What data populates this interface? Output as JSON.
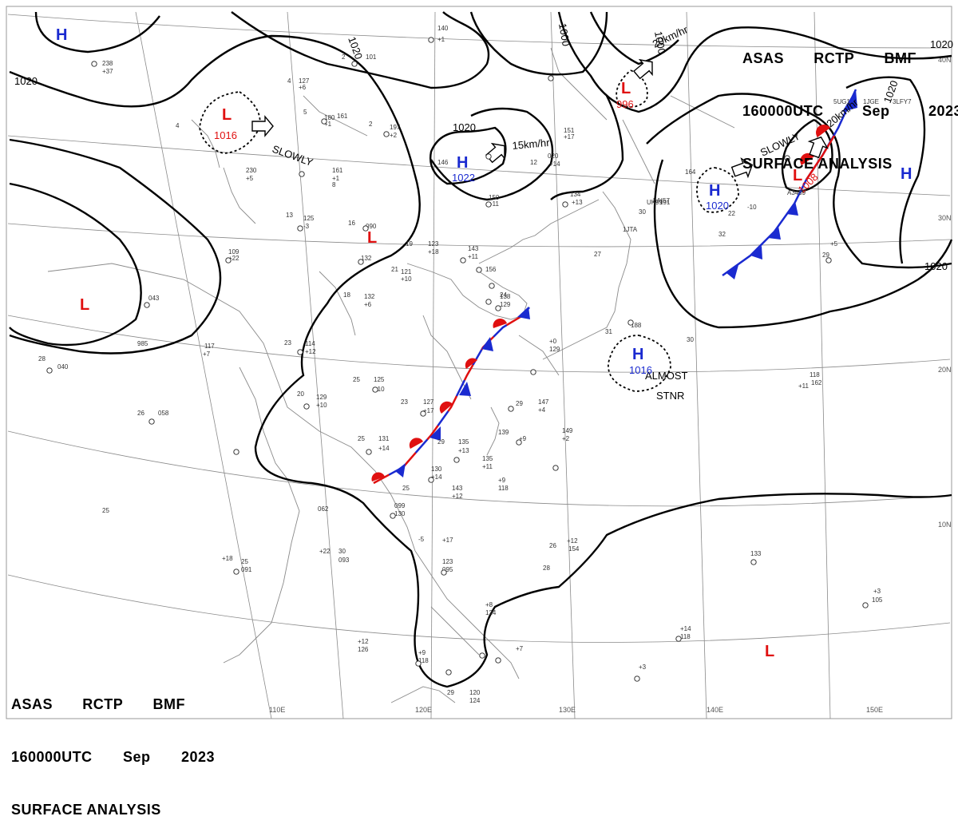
{
  "header": {
    "line1": [
      "ASAS",
      "RCTP",
      "BMF"
    ],
    "line2": [
      "160000UTC",
      "Sep",
      "2023"
    ],
    "line3": "SURFACE ANALYSIS"
  },
  "colors": {
    "high": "#1a2ad0",
    "low": "#e01010",
    "grid": "#8a8a8a",
    "isobar": "#000000"
  },
  "lat_labels": [
    "40N",
    "30N",
    "20N",
    "10N"
  ],
  "lon_labels": [
    "110E",
    "120E",
    "130E",
    "140E",
    "150E"
  ],
  "isobar_labels": [
    "1020",
    "1020",
    "1020",
    "1020",
    "1000",
    "1000",
    "1020",
    "1020"
  ],
  "centers": [
    {
      "type": "H",
      "value": ""
    },
    {
      "type": "L",
      "value": "1016"
    },
    {
      "type": "H",
      "value": "1022"
    },
    {
      "type": "L",
      "value": ""
    },
    {
      "type": "L",
      "value": ""
    },
    {
      "type": "L",
      "value": "996"
    },
    {
      "type": "H",
      "value": "1020"
    },
    {
      "type": "L",
      "value": "1008"
    },
    {
      "type": "H",
      "value": ""
    },
    {
      "type": "H",
      "value": "1016"
    },
    {
      "type": "L",
      "value": ""
    }
  ],
  "motion_labels": [
    "SLOWLY",
    "15km/hr",
    "20km/hr",
    "SLOWLY",
    "20km/hr",
    "ALMOST",
    "STNR"
  ],
  "stations": [
    "238",
    "+37",
    "2",
    "161",
    "140",
    "+1",
    "101",
    "4",
    "4",
    "127",
    "+6",
    "180",
    "+1",
    "5",
    "197",
    "+2",
    "2",
    "230",
    "+5",
    "161",
    "+1",
    "8",
    "146",
    "150",
    "+11",
    "12",
    "020",
    "+14",
    "134",
    "+13",
    "151",
    "+17",
    "13",
    "125",
    "-3",
    "16",
    "090",
    "109",
    "+22",
    "19",
    "123",
    "+18",
    "143",
    "+11",
    "21",
    "121",
    "+10",
    "132",
    "18",
    "132",
    "+6",
    "043",
    "23",
    "114",
    "+12",
    "117",
    "+7",
    "985",
    "040",
    "28",
    "26",
    "058",
    "25",
    "125",
    "+10",
    "20",
    "129",
    "+10",
    "23",
    "127",
    "+17",
    "29",
    "147",
    "+4",
    "25",
    "131",
    "+14",
    "29",
    "135",
    "+13",
    "139",
    "+9",
    "149",
    "+2",
    "135",
    "+11",
    "130",
    "+14",
    "143",
    "+12",
    "25",
    "062",
    "099",
    "130",
    "+22",
    "30",
    "093",
    "+18",
    "25",
    "091",
    "+17",
    "123",
    "095",
    "+12",
    "154",
    "+8",
    "124",
    "+12",
    "126",
    "+9",
    "118",
    "+7",
    "120",
    "124",
    "+14",
    "118",
    "+3",
    "105",
    "+3",
    "118",
    "162",
    "+5",
    "188",
    "164",
    "191",
    "-10",
    "156",
    "138",
    "129",
    "+0",
    "129",
    "+9",
    "118",
    "+11",
    "133",
    "-5",
    "29",
    "30",
    "27",
    "31",
    "22",
    "25",
    "29",
    "24",
    "26",
    "28",
    "30",
    "32",
    "1JTA",
    "UK99",
    "A3459",
    "LAI57",
    "5UG1",
    "1JGE",
    "3LFY7"
  ]
}
